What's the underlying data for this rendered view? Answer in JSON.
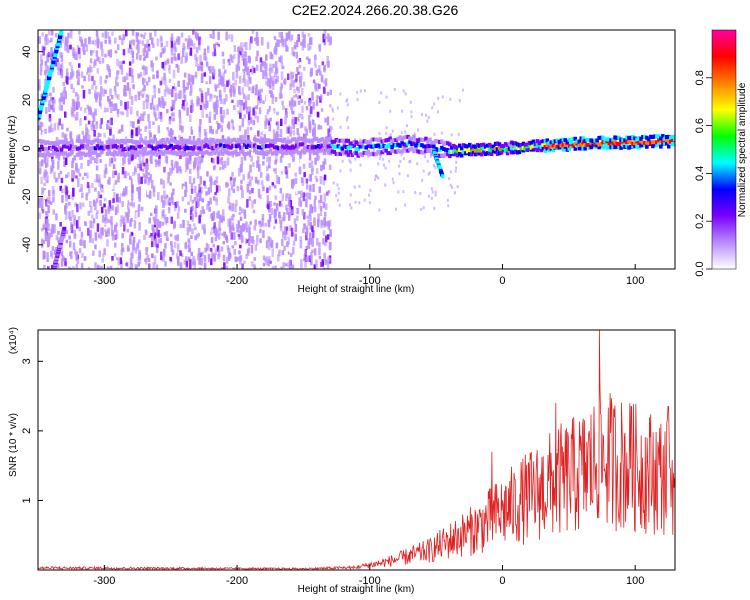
{
  "title": "C2E2.2024.266.20.38.G26",
  "chart_data": [
    {
      "type": "heatmap",
      "xlabel": "Height of straight line (km)",
      "ylabel": "Frequency (Hz)",
      "xlim": [
        -350,
        130
      ],
      "ylim": [
        -50,
        49
      ],
      "xticks": [
        -300,
        -200,
        -100,
        0,
        100
      ],
      "yticks": [
        -40,
        -20,
        0,
        20,
        40
      ],
      "colorbar": {
        "label": "Normalized spectral amplitude",
        "range": [
          0,
          1
        ],
        "ticks": [
          "0.0",
          "0.2",
          "0.4",
          "0.6",
          "0.8"
        ],
        "colors": [
          "#ffffff",
          "#b98cff",
          "#7a00ff",
          "#0000ff",
          "#00ffff",
          "#00ff00",
          "#ffff00",
          "#ff8000",
          "#ff0000",
          "#ff00a0"
        ]
      },
      "features": {
        "diffuse_noise_x_range": [
          -350,
          -130
        ],
        "main_line": [
          {
            "x": -350,
            "y": 0
          },
          {
            "x": -130,
            "y": 1
          },
          {
            "x": -110,
            "y": 0
          },
          {
            "x": -70,
            "y": 2
          },
          {
            "x": -40,
            "y": -1
          },
          {
            "x": 0,
            "y": 0
          },
          {
            "x": 60,
            "y": 2
          },
          {
            "x": 130,
            "y": 3
          }
        ],
        "branch_line": [
          {
            "x": -52,
            "y": -1
          },
          {
            "x": -45,
            "y": -12
          }
        ],
        "edge_line_upper": [
          {
            "x": -350,
            "y": 12
          },
          {
            "x": -332,
            "y": 49
          }
        ],
        "edge_line_lower": [
          {
            "x": -338,
            "y": -50
          },
          {
            "x": -330,
            "y": -33
          }
        ]
      }
    },
    {
      "type": "line",
      "xlabel": "Height of straight line (km)",
      "ylabel": "SNR (10 * v/v)",
      "multiplier_label": "(x10⁴)",
      "xlim": [
        -350,
        130
      ],
      "ylim": [
        0,
        3.45
      ],
      "xticks": [
        -300,
        -200,
        -100,
        0,
        100
      ],
      "yticks": [
        1,
        2,
        3
      ],
      "series": [
        {
          "color": "#e02020",
          "envelope": [
            {
              "x": -350,
              "y": 0.05
            },
            {
              "x": -150,
              "y": 0.03
            },
            {
              "x": -110,
              "y": 0.06
            },
            {
              "x": -90,
              "y": 0.15
            },
            {
              "x": -75,
              "y": 0.25
            },
            {
              "x": -55,
              "y": 0.4
            },
            {
              "x": -40,
              "y": 0.6
            },
            {
              "x": -20,
              "y": 0.85
            },
            {
              "x": 0,
              "y": 1.2
            },
            {
              "x": 20,
              "y": 1.5
            },
            {
              "x": 40,
              "y": 1.8
            },
            {
              "x": 60,
              "y": 2.0
            },
            {
              "x": 75,
              "y": 2.3
            },
            {
              "x": 100,
              "y": 2.1
            },
            {
              "x": 130,
              "y": 1.9
            }
          ],
          "peaks": [
            {
              "x": 40,
              "y": 2.4
            },
            {
              "x": 73,
              "y": 3.45
            },
            {
              "x": 97,
              "y": 2.35
            },
            {
              "x": 125,
              "y": 2.35
            },
            {
              "x": -8,
              "y": 1.7
            }
          ]
        }
      ]
    }
  ]
}
